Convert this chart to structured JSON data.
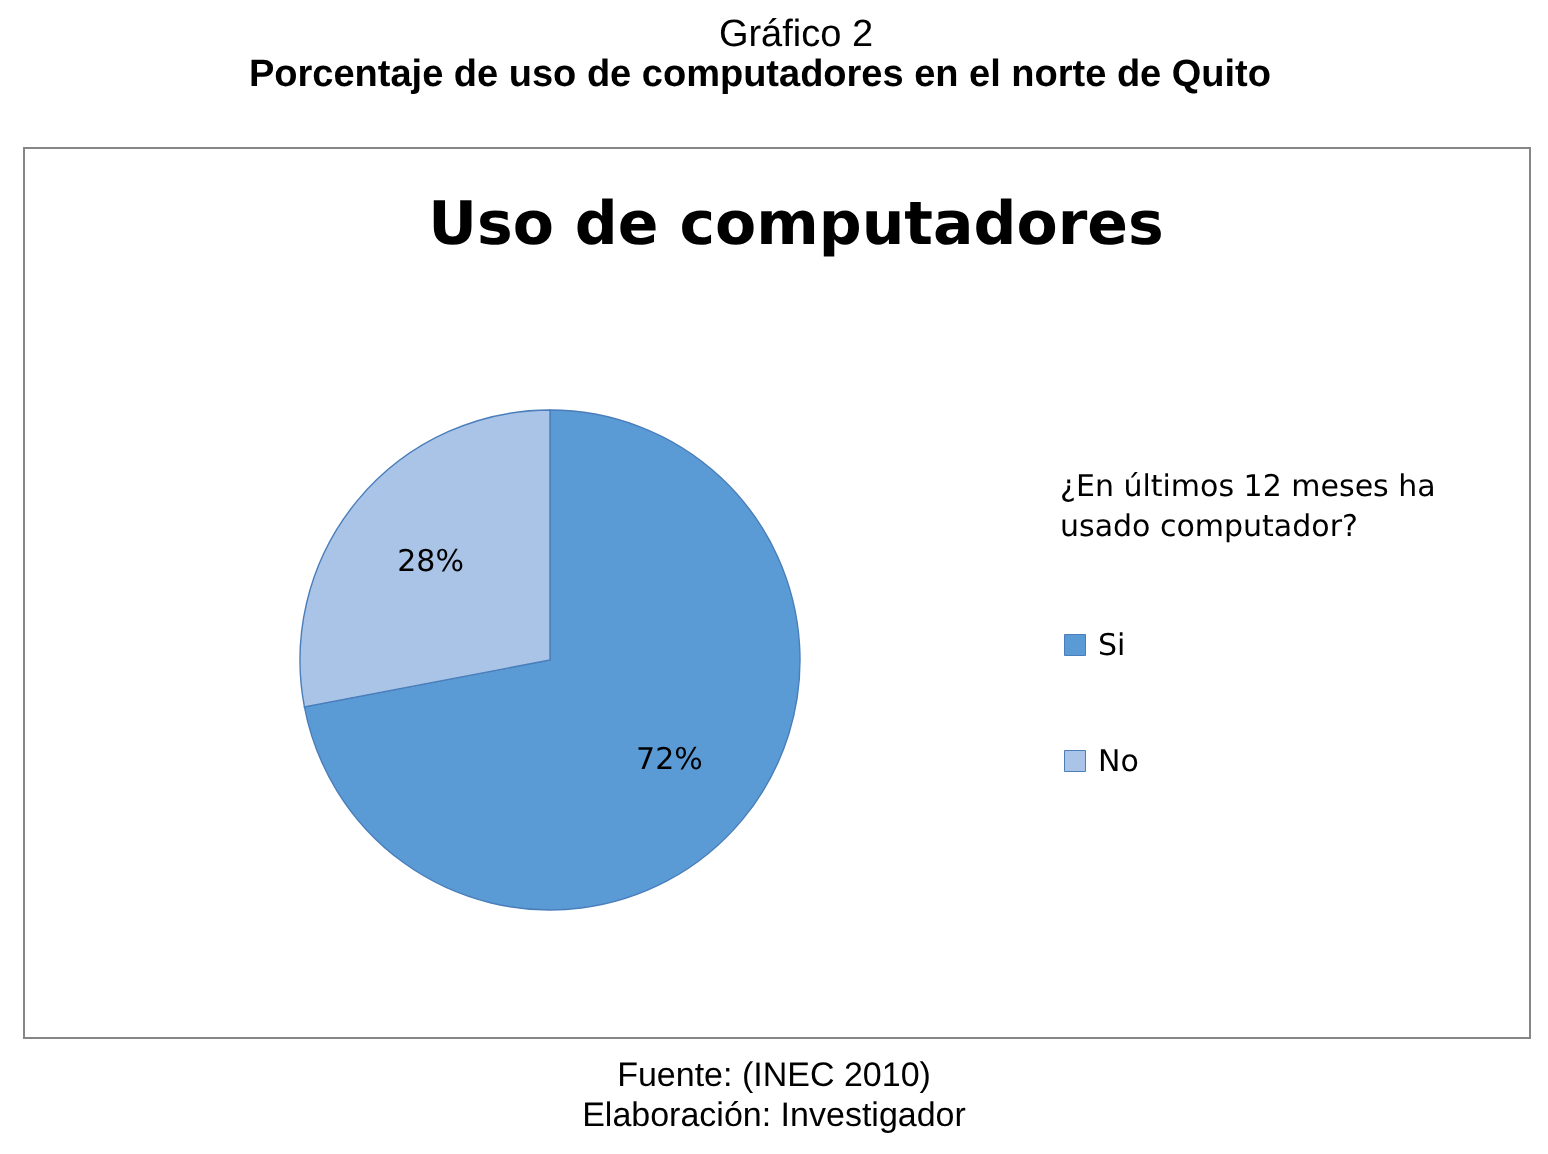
{
  "chart_data": {
    "type": "pie",
    "title": "Uso de computadores",
    "legend_title": "¿En últimos 12 meses ha usado computador?",
    "categories": [
      "Si",
      "No"
    ],
    "values": [
      72,
      28
    ],
    "colors": [
      "#5b9bd5",
      "#a9c4e6"
    ],
    "value_labels": [
      "72%",
      "28%"
    ],
    "legend": "right",
    "annotations": [
      "Gráfico 2",
      "Porcentaje de uso de computadores en el norte de Quito",
      "Fuente: (INEC 2010)",
      "Elaboración: Investigador"
    ]
  }
}
